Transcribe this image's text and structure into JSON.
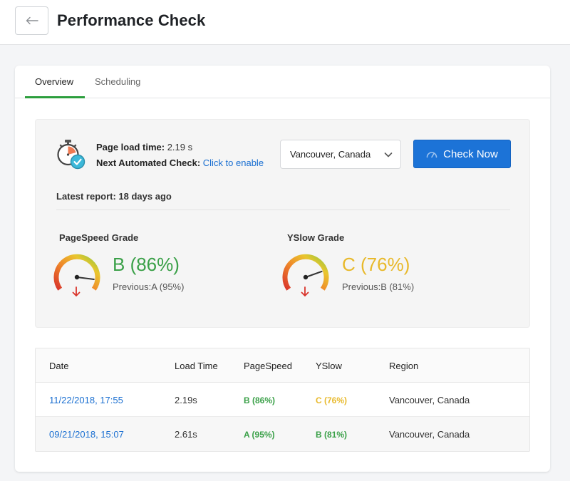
{
  "header": {
    "title": "Performance Check",
    "back_icon": "arrow-left-icon"
  },
  "tabs": [
    {
      "label": "Overview",
      "active": true
    },
    {
      "label": "Scheduling",
      "active": false
    }
  ],
  "summary": {
    "load_time_label": "Page load time:",
    "load_time_value": "2.19 s",
    "next_check_label": "Next Automated Check:",
    "next_check_link": "Click to enable",
    "region": "Vancouver, Canada",
    "check_button": "Check Now",
    "latest_report": "Latest report: 18 days ago"
  },
  "grades": {
    "pagespeed": {
      "label": "PageSpeed Grade",
      "value": "B (86%)",
      "previous": "Previous:A (95%)",
      "percent": 86,
      "color": "#3aa048"
    },
    "yslow": {
      "label": "YSlow Grade",
      "value": "C (76%)",
      "previous": "Previous:B (81%)",
      "percent": 76,
      "color": "#e8b92b"
    }
  },
  "table": {
    "headers": [
      "Date",
      "Load Time",
      "PageSpeed",
      "YSlow",
      "Region"
    ],
    "rows": [
      {
        "date": "11/22/2018, 17:55",
        "load_time": "2.19s",
        "pagespeed": "B (86%)",
        "pagespeed_color": "#3aa048",
        "yslow": "C (76%)",
        "yslow_color": "#e8b92b",
        "region": "Vancouver, Canada"
      },
      {
        "date": "09/21/2018, 15:07",
        "load_time": "2.61s",
        "pagespeed": "A (95%)",
        "pagespeed_color": "#3aa048",
        "yslow": "B (81%)",
        "yslow_color": "#3aa048",
        "region": "Vancouver, Canada"
      }
    ]
  },
  "colors": {
    "accent": "#1c73d7",
    "tab_active": "#2c9e3d",
    "link": "#1a6fd1"
  }
}
